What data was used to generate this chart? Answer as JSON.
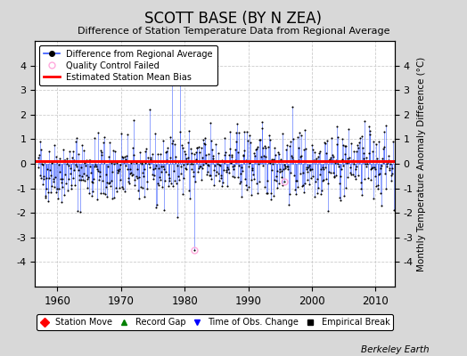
{
  "title": "SCOTT BASE (BY N ZEA)",
  "subtitle": "Difference of Station Temperature Data from Regional Average",
  "ylabel": "Monthly Temperature Anomaly Difference (°C)",
  "xlabel_ticks": [
    1960,
    1970,
    1980,
    1990,
    2000,
    2010
  ],
  "ylim": [
    -5,
    5
  ],
  "xlim": [
    1956.5,
    2013
  ],
  "yticks": [
    -4,
    -3,
    -2,
    -1,
    0,
    1,
    2,
    3,
    4
  ],
  "estimated_bias": 0.1,
  "background_color": "#d8d8d8",
  "plot_bg_color": "#ffffff",
  "line_color": "#3355ff",
  "bias_color": "#ff0000",
  "dot_color": "#000000",
  "footer": "Berkeley Earth",
  "seed": 42
}
